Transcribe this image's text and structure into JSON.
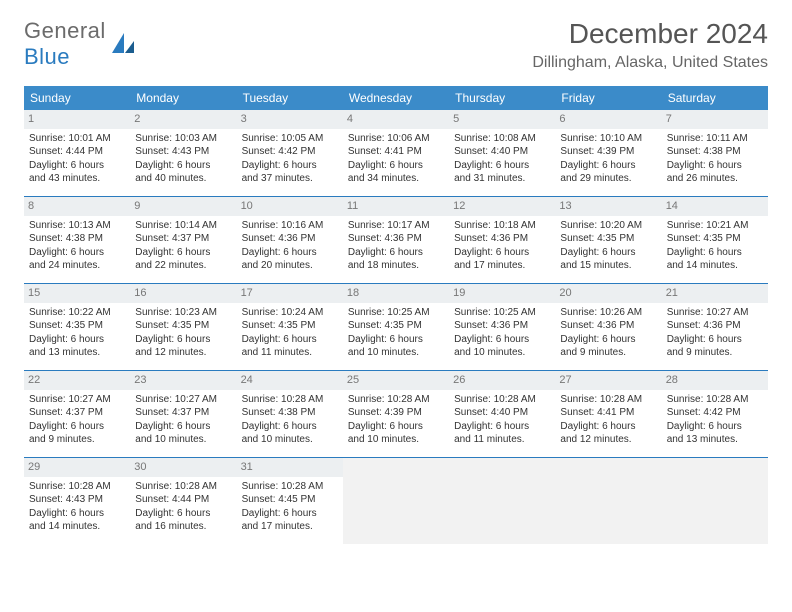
{
  "logo": {
    "part1": "General",
    "part2": "Blue"
  },
  "title": "December 2024",
  "location": "Dillingham, Alaska, United States",
  "header_bg": "#3b8bc9",
  "rule_color": "#2a7bbf",
  "daynum_bg": "#eceff1",
  "empty_bg": "#f2f2f2",
  "day_names": [
    "Sunday",
    "Monday",
    "Tuesday",
    "Wednesday",
    "Thursday",
    "Friday",
    "Saturday"
  ],
  "weeks": [
    [
      {
        "n": "1",
        "sr": "Sunrise: 10:01 AM",
        "ss": "Sunset: 4:44 PM",
        "d1": "Daylight: 6 hours",
        "d2": "and 43 minutes."
      },
      {
        "n": "2",
        "sr": "Sunrise: 10:03 AM",
        "ss": "Sunset: 4:43 PM",
        "d1": "Daylight: 6 hours",
        "d2": "and 40 minutes."
      },
      {
        "n": "3",
        "sr": "Sunrise: 10:05 AM",
        "ss": "Sunset: 4:42 PM",
        "d1": "Daylight: 6 hours",
        "d2": "and 37 minutes."
      },
      {
        "n": "4",
        "sr": "Sunrise: 10:06 AM",
        "ss": "Sunset: 4:41 PM",
        "d1": "Daylight: 6 hours",
        "d2": "and 34 minutes."
      },
      {
        "n": "5",
        "sr": "Sunrise: 10:08 AM",
        "ss": "Sunset: 4:40 PM",
        "d1": "Daylight: 6 hours",
        "d2": "and 31 minutes."
      },
      {
        "n": "6",
        "sr": "Sunrise: 10:10 AM",
        "ss": "Sunset: 4:39 PM",
        "d1": "Daylight: 6 hours",
        "d2": "and 29 minutes."
      },
      {
        "n": "7",
        "sr": "Sunrise: 10:11 AM",
        "ss": "Sunset: 4:38 PM",
        "d1": "Daylight: 6 hours",
        "d2": "and 26 minutes."
      }
    ],
    [
      {
        "n": "8",
        "sr": "Sunrise: 10:13 AM",
        "ss": "Sunset: 4:38 PM",
        "d1": "Daylight: 6 hours",
        "d2": "and 24 minutes."
      },
      {
        "n": "9",
        "sr": "Sunrise: 10:14 AM",
        "ss": "Sunset: 4:37 PM",
        "d1": "Daylight: 6 hours",
        "d2": "and 22 minutes."
      },
      {
        "n": "10",
        "sr": "Sunrise: 10:16 AM",
        "ss": "Sunset: 4:36 PM",
        "d1": "Daylight: 6 hours",
        "d2": "and 20 minutes."
      },
      {
        "n": "11",
        "sr": "Sunrise: 10:17 AM",
        "ss": "Sunset: 4:36 PM",
        "d1": "Daylight: 6 hours",
        "d2": "and 18 minutes."
      },
      {
        "n": "12",
        "sr": "Sunrise: 10:18 AM",
        "ss": "Sunset: 4:36 PM",
        "d1": "Daylight: 6 hours",
        "d2": "and 17 minutes."
      },
      {
        "n": "13",
        "sr": "Sunrise: 10:20 AM",
        "ss": "Sunset: 4:35 PM",
        "d1": "Daylight: 6 hours",
        "d2": "and 15 minutes."
      },
      {
        "n": "14",
        "sr": "Sunrise: 10:21 AM",
        "ss": "Sunset: 4:35 PM",
        "d1": "Daylight: 6 hours",
        "d2": "and 14 minutes."
      }
    ],
    [
      {
        "n": "15",
        "sr": "Sunrise: 10:22 AM",
        "ss": "Sunset: 4:35 PM",
        "d1": "Daylight: 6 hours",
        "d2": "and 13 minutes."
      },
      {
        "n": "16",
        "sr": "Sunrise: 10:23 AM",
        "ss": "Sunset: 4:35 PM",
        "d1": "Daylight: 6 hours",
        "d2": "and 12 minutes."
      },
      {
        "n": "17",
        "sr": "Sunrise: 10:24 AM",
        "ss": "Sunset: 4:35 PM",
        "d1": "Daylight: 6 hours",
        "d2": "and 11 minutes."
      },
      {
        "n": "18",
        "sr": "Sunrise: 10:25 AM",
        "ss": "Sunset: 4:35 PM",
        "d1": "Daylight: 6 hours",
        "d2": "and 10 minutes."
      },
      {
        "n": "19",
        "sr": "Sunrise: 10:25 AM",
        "ss": "Sunset: 4:36 PM",
        "d1": "Daylight: 6 hours",
        "d2": "and 10 minutes."
      },
      {
        "n": "20",
        "sr": "Sunrise: 10:26 AM",
        "ss": "Sunset: 4:36 PM",
        "d1": "Daylight: 6 hours",
        "d2": "and 9 minutes."
      },
      {
        "n": "21",
        "sr": "Sunrise: 10:27 AM",
        "ss": "Sunset: 4:36 PM",
        "d1": "Daylight: 6 hours",
        "d2": "and 9 minutes."
      }
    ],
    [
      {
        "n": "22",
        "sr": "Sunrise: 10:27 AM",
        "ss": "Sunset: 4:37 PM",
        "d1": "Daylight: 6 hours",
        "d2": "and 9 minutes."
      },
      {
        "n": "23",
        "sr": "Sunrise: 10:27 AM",
        "ss": "Sunset: 4:37 PM",
        "d1": "Daylight: 6 hours",
        "d2": "and 10 minutes."
      },
      {
        "n": "24",
        "sr": "Sunrise: 10:28 AM",
        "ss": "Sunset: 4:38 PM",
        "d1": "Daylight: 6 hours",
        "d2": "and 10 minutes."
      },
      {
        "n": "25",
        "sr": "Sunrise: 10:28 AM",
        "ss": "Sunset: 4:39 PM",
        "d1": "Daylight: 6 hours",
        "d2": "and 10 minutes."
      },
      {
        "n": "26",
        "sr": "Sunrise: 10:28 AM",
        "ss": "Sunset: 4:40 PM",
        "d1": "Daylight: 6 hours",
        "d2": "and 11 minutes."
      },
      {
        "n": "27",
        "sr": "Sunrise: 10:28 AM",
        "ss": "Sunset: 4:41 PM",
        "d1": "Daylight: 6 hours",
        "d2": "and 12 minutes."
      },
      {
        "n": "28",
        "sr": "Sunrise: 10:28 AM",
        "ss": "Sunset: 4:42 PM",
        "d1": "Daylight: 6 hours",
        "d2": "and 13 minutes."
      }
    ],
    [
      {
        "n": "29",
        "sr": "Sunrise: 10:28 AM",
        "ss": "Sunset: 4:43 PM",
        "d1": "Daylight: 6 hours",
        "d2": "and 14 minutes."
      },
      {
        "n": "30",
        "sr": "Sunrise: 10:28 AM",
        "ss": "Sunset: 4:44 PM",
        "d1": "Daylight: 6 hours",
        "d2": "and 16 minutes."
      },
      {
        "n": "31",
        "sr": "Sunrise: 10:28 AM",
        "ss": "Sunset: 4:45 PM",
        "d1": "Daylight: 6 hours",
        "d2": "and 17 minutes."
      },
      null,
      null,
      null,
      null
    ]
  ]
}
